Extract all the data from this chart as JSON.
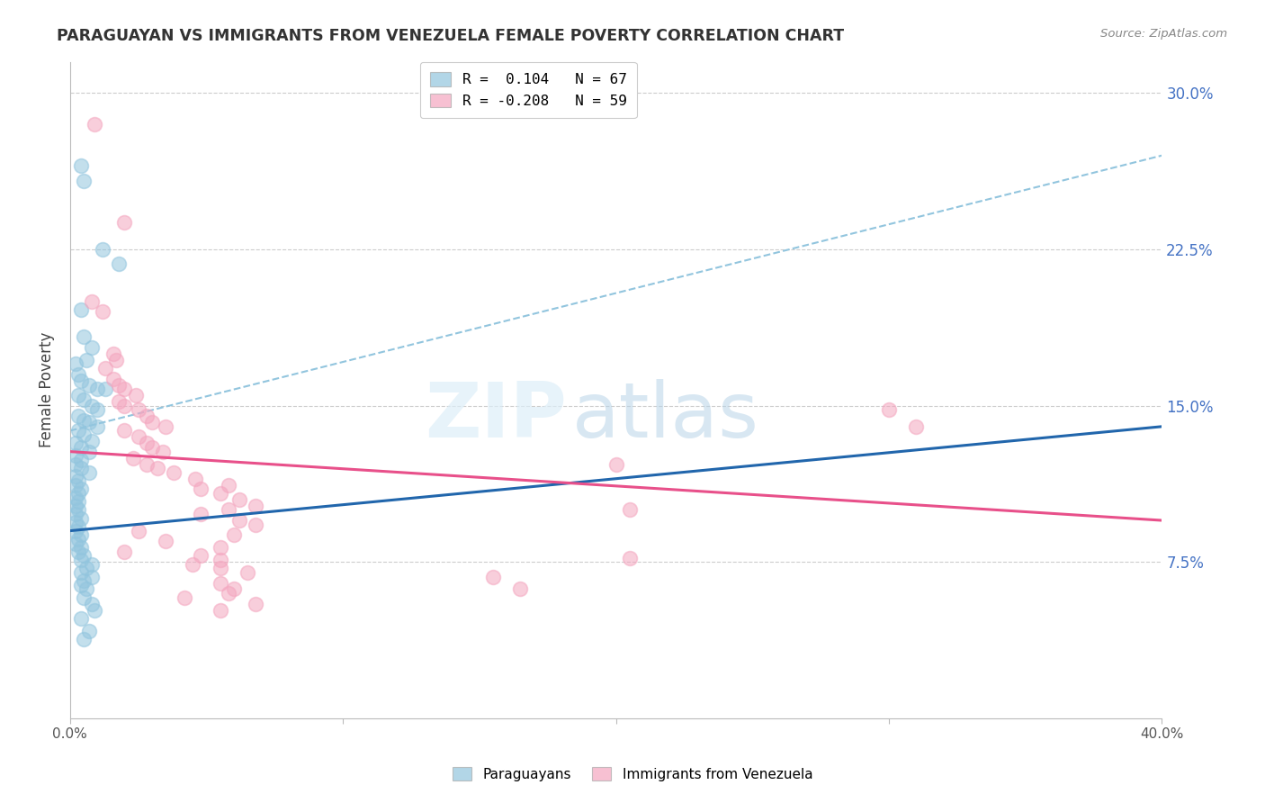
{
  "title": "PARAGUAYAN VS IMMIGRANTS FROM VENEZUELA FEMALE POVERTY CORRELATION CHART",
  "source": "Source: ZipAtlas.com",
  "ylabel": "Female Poverty",
  "right_yticks": [
    "30.0%",
    "22.5%",
    "15.0%",
    "7.5%"
  ],
  "right_ytick_vals": [
    0.3,
    0.225,
    0.15,
    0.075
  ],
  "watermark_zip": "ZIP",
  "watermark_atlas": "atlas",
  "legend_r1": "R =  0.104   N = 67",
  "legend_r2": "R = -0.208   N = 59",
  "blue_color": "#92c5de",
  "blue_line_color": "#2166ac",
  "pink_color": "#f4a6bf",
  "pink_line_color": "#e8508a",
  "dashed_line_color": "#92c5de",
  "blue_scatter": [
    [
      0.004,
      0.265
    ],
    [
      0.005,
      0.258
    ],
    [
      0.012,
      0.225
    ],
    [
      0.018,
      0.218
    ],
    [
      0.004,
      0.196
    ],
    [
      0.005,
      0.183
    ],
    [
      0.008,
      0.178
    ],
    [
      0.006,
      0.172
    ],
    [
      0.002,
      0.17
    ],
    [
      0.003,
      0.165
    ],
    [
      0.004,
      0.162
    ],
    [
      0.007,
      0.16
    ],
    [
      0.01,
      0.158
    ],
    [
      0.013,
      0.158
    ],
    [
      0.003,
      0.155
    ],
    [
      0.005,
      0.153
    ],
    [
      0.008,
      0.15
    ],
    [
      0.01,
      0.148
    ],
    [
      0.003,
      0.145
    ],
    [
      0.005,
      0.143
    ],
    [
      0.007,
      0.142
    ],
    [
      0.01,
      0.14
    ],
    [
      0.003,
      0.138
    ],
    [
      0.005,
      0.136
    ],
    [
      0.008,
      0.133
    ],
    [
      0.002,
      0.132
    ],
    [
      0.004,
      0.13
    ],
    [
      0.007,
      0.128
    ],
    [
      0.002,
      0.126
    ],
    [
      0.004,
      0.124
    ],
    [
      0.002,
      0.122
    ],
    [
      0.004,
      0.12
    ],
    [
      0.007,
      0.118
    ],
    [
      0.002,
      0.116
    ],
    [
      0.003,
      0.114
    ],
    [
      0.002,
      0.112
    ],
    [
      0.004,
      0.11
    ],
    [
      0.003,
      0.108
    ],
    [
      0.002,
      0.106
    ],
    [
      0.003,
      0.104
    ],
    [
      0.002,
      0.102
    ],
    [
      0.003,
      0.1
    ],
    [
      0.002,
      0.098
    ],
    [
      0.004,
      0.096
    ],
    [
      0.002,
      0.094
    ],
    [
      0.003,
      0.092
    ],
    [
      0.002,
      0.09
    ],
    [
      0.004,
      0.088
    ],
    [
      0.003,
      0.086
    ],
    [
      0.002,
      0.084
    ],
    [
      0.004,
      0.082
    ],
    [
      0.003,
      0.08
    ],
    [
      0.005,
      0.078
    ],
    [
      0.004,
      0.076
    ],
    [
      0.008,
      0.074
    ],
    [
      0.006,
      0.072
    ],
    [
      0.004,
      0.07
    ],
    [
      0.008,
      0.068
    ],
    [
      0.005,
      0.066
    ],
    [
      0.004,
      0.064
    ],
    [
      0.006,
      0.062
    ],
    [
      0.005,
      0.058
    ],
    [
      0.008,
      0.055
    ],
    [
      0.009,
      0.052
    ],
    [
      0.004,
      0.048
    ],
    [
      0.007,
      0.042
    ],
    [
      0.005,
      0.038
    ]
  ],
  "pink_scatter": [
    [
      0.009,
      0.285
    ],
    [
      0.02,
      0.238
    ],
    [
      0.008,
      0.2
    ],
    [
      0.012,
      0.195
    ],
    [
      0.016,
      0.175
    ],
    [
      0.017,
      0.172
    ],
    [
      0.013,
      0.168
    ],
    [
      0.016,
      0.163
    ],
    [
      0.018,
      0.16
    ],
    [
      0.02,
      0.158
    ],
    [
      0.024,
      0.155
    ],
    [
      0.018,
      0.152
    ],
    [
      0.02,
      0.15
    ],
    [
      0.025,
      0.148
    ],
    [
      0.028,
      0.145
    ],
    [
      0.03,
      0.142
    ],
    [
      0.035,
      0.14
    ],
    [
      0.02,
      0.138
    ],
    [
      0.025,
      0.135
    ],
    [
      0.028,
      0.132
    ],
    [
      0.03,
      0.13
    ],
    [
      0.034,
      0.128
    ],
    [
      0.023,
      0.125
    ],
    [
      0.028,
      0.122
    ],
    [
      0.032,
      0.12
    ],
    [
      0.038,
      0.118
    ],
    [
      0.046,
      0.115
    ],
    [
      0.058,
      0.112
    ],
    [
      0.048,
      0.11
    ],
    [
      0.055,
      0.108
    ],
    [
      0.062,
      0.105
    ],
    [
      0.068,
      0.102
    ],
    [
      0.058,
      0.1
    ],
    [
      0.048,
      0.098
    ],
    [
      0.062,
      0.095
    ],
    [
      0.068,
      0.093
    ],
    [
      0.025,
      0.09
    ],
    [
      0.06,
      0.088
    ],
    [
      0.035,
      0.085
    ],
    [
      0.055,
      0.082
    ],
    [
      0.02,
      0.08
    ],
    [
      0.048,
      0.078
    ],
    [
      0.055,
      0.076
    ],
    [
      0.045,
      0.074
    ],
    [
      0.055,
      0.072
    ],
    [
      0.065,
      0.07
    ],
    [
      0.055,
      0.065
    ],
    [
      0.06,
      0.062
    ],
    [
      0.058,
      0.06
    ],
    [
      0.042,
      0.058
    ],
    [
      0.068,
      0.055
    ],
    [
      0.055,
      0.052
    ],
    [
      0.3,
      0.148
    ],
    [
      0.31,
      0.14
    ],
    [
      0.2,
      0.122
    ],
    [
      0.155,
      0.068
    ],
    [
      0.165,
      0.062
    ],
    [
      0.205,
      0.077
    ],
    [
      0.205,
      0.1
    ]
  ],
  "blue_line": [
    [
      0.0,
      0.09
    ],
    [
      0.4,
      0.14
    ]
  ],
  "pink_line": [
    [
      0.0,
      0.128
    ],
    [
      0.4,
      0.095
    ]
  ],
  "dashed_line": [
    [
      0.0,
      0.138
    ],
    [
      0.4,
      0.27
    ]
  ],
  "xlim": [
    0.0,
    0.4
  ],
  "ylim": [
    0.0,
    0.315
  ],
  "figsize": [
    14.06,
    8.92
  ],
  "dpi": 100
}
